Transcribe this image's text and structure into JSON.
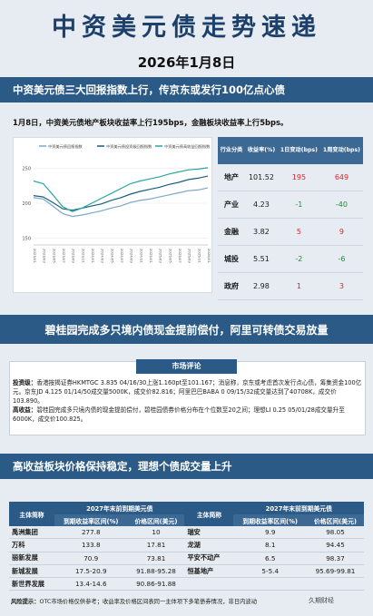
{
  "title": "中资美元债走势速递",
  "date": "2026年1月8日",
  "section1_title": "中资美元债三大回报指数上行，传京东或发行100亿点心债",
  "intro": "1月8日，中资美元债地产板块收益率上行195bps，金融板块收益率上行5bps。",
  "chart_data": {
    "type": "line",
    "legend": [
      "中资美元债回报指数",
      "中资美元债投资级回报指数",
      "中资美元债高收益回报指数"
    ],
    "yticks": [
      "250",
      "200",
      "150"
    ],
    "ylim": [
      140,
      260
    ],
    "xlabels": [
      "2023/01",
      "2023/03",
      "2023/05",
      "2023/07",
      "2023/09",
      "2023/11",
      "2024/01",
      "2024/03",
      "2024/05",
      "2024/07",
      "2024/09",
      "2024/11",
      "2025/01",
      "2025/03",
      "2025/05",
      "2025/07",
      "2025/09",
      "2025/11",
      "2026/01"
    ],
    "series": [
      {
        "name": "中资美元债回报指数",
        "color": "#7aa7c8",
        "values": [
          208,
          206,
          196,
          185,
          181,
          183,
          186,
          189,
          193,
          196,
          201,
          204,
          206,
          209,
          212,
          215,
          218,
          219,
          222
        ]
      },
      {
        "name": "中资美元债投资级回报指数",
        "color": "#1a5e7a",
        "values": [
          211,
          209,
          201,
          192,
          190,
          193,
          196,
          199,
          204,
          208,
          213,
          217,
          220,
          223,
          227,
          230,
          234,
          236,
          239
        ]
      },
      {
        "name": "中资美元债高收益回报指数",
        "color": "#2aa6a0",
        "values": [
          232,
          228,
          212,
          195,
          188,
          193,
          200,
          207,
          214,
          221,
          228,
          232,
          235,
          238,
          242,
          245,
          248,
          249,
          251
        ]
      }
    ]
  },
  "yield_table": {
    "headers": [
      "行业分类",
      "收益率(%)",
      "1日变动(bps)",
      "1周变动(bps)"
    ],
    "rows": [
      {
        "sector": "地产",
        "yield": "101.52",
        "d1": "195",
        "w1": "649",
        "d1_color": "red",
        "w1_color": "red"
      },
      {
        "sector": "产业",
        "yield": "4.23",
        "d1": "-1",
        "w1": "-40",
        "d1_color": "green",
        "w1_color": "green"
      },
      {
        "sector": "金融",
        "yield": "3.82",
        "d1": "5",
        "w1": "9",
        "d1_color": "red",
        "w1_color": "red"
      },
      {
        "sector": "城投",
        "yield": "5.51",
        "d1": "-2",
        "w1": "-6",
        "d1_color": "green",
        "w1_color": "green"
      },
      {
        "sector": "政府",
        "yield": "2.98",
        "d1": "1",
        "w1": "3",
        "d1_color": "red",
        "w1_color": "red"
      }
    ]
  },
  "section2_title": "碧桂园完成多只境内债现金提前偿付，阿里可转债交易放量",
  "comment": {
    "header": "市场评论",
    "investment_label": "投资级：",
    "investment_text": "香港按揭证券HKMTGC 3.835 04/16/30上涨1.160pt至101.167；消息称，京东或考虑首次发行点心债，筹集资金100亿元。京东JD 4.125 01/14/50成交量5000K，成交价82.816；阿里巴巴BABA 0 09/15/32成交量达到了40708K，成交价103.890。",
    "highyield_label": "高收益：",
    "highyield_text": "碧桂园完成多只境内债的现金提前偿付，碧桂园债券价格分布在个位数至20之间；理想LI 0.25 05/01/28成交量升至6000K，成交价100.825。"
  },
  "section3_title": "高收益板块价格保持稳定，理想个债成交量上升",
  "bond_table": {
    "left_group": "2027年末前到期美元债",
    "right_group": "2027年末前到期美元债",
    "name_header": "主体简称",
    "ytm_header": "到期收益率区间(%)",
    "price_header": "价格区间(美元)",
    "left_rows": [
      {
        "name": "禹洲集团",
        "ytm": "277.8",
        "price": "10"
      },
      {
        "name": "万科",
        "ytm": "133.8",
        "price": "17.81"
      },
      {
        "name": "丽新发展",
        "ytm": "70.9",
        "price": "73.81"
      },
      {
        "name": "新城发展",
        "ytm": "17.5-20.9",
        "price": "91.88-95.28"
      },
      {
        "name": "新世界发展",
        "ytm": "13.4-14.6",
        "price": "90.86-91.88"
      }
    ],
    "right_rows": [
      {
        "name": "瑞安",
        "ytm": "9.9",
        "price": "98.05"
      },
      {
        "name": "龙湖",
        "ytm": "8.1",
        "price": "94.45"
      },
      {
        "name": "平安不动产",
        "ytm": "6.5",
        "price": "98.37"
      },
      {
        "name": "恒基地产",
        "ytm": "5-5.4",
        "price": "95.69-99.81"
      },
      {
        "name": "",
        "ytm": "",
        "price": ""
      }
    ]
  },
  "footer": {
    "label": "风险提示：",
    "text": "OTC市场价格仅供参考；收益率及价格区间表同一主体项下多笔债券情况，非日内波动"
  },
  "logo": "久期财经"
}
